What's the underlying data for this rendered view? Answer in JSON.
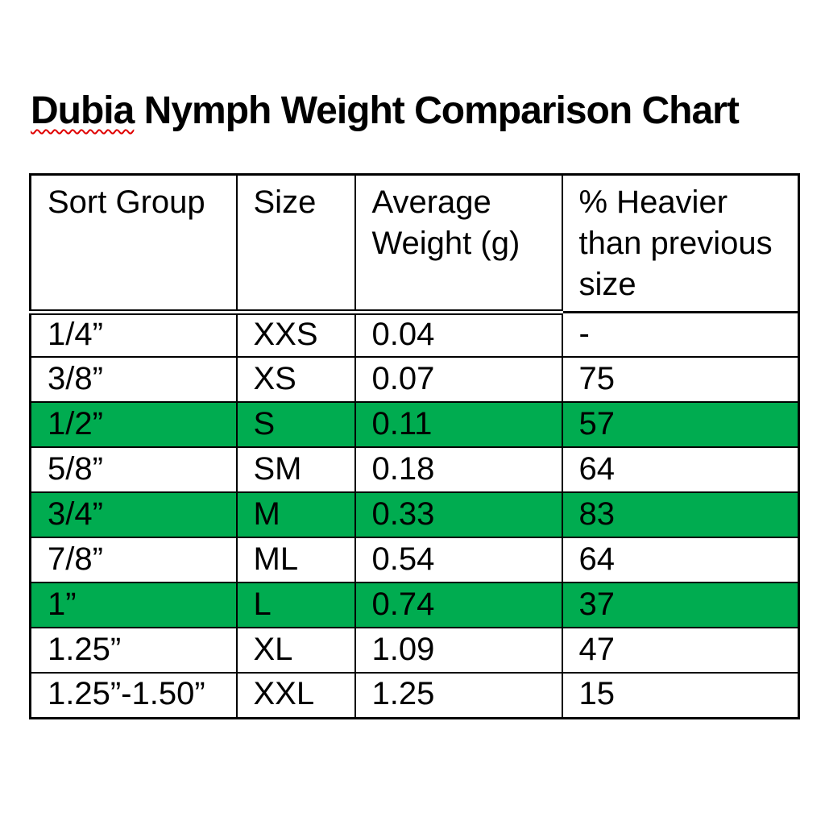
{
  "document": {
    "background": "#ffffff",
    "text_color": "#000000"
  },
  "title": {
    "full_text": "Dubia Nymph Weight Comparison Chart",
    "word_underlined": "Dubia",
    "rest": " Nymph Weight Comparison Chart",
    "spellcheck_squiggle_color": "#e00000"
  },
  "table": {
    "columns": [
      "Sort Group",
      "Size",
      "Average Weight (g)",
      "% Heavier than previous size"
    ],
    "colors": {
      "highlight_green": "#00ac50",
      "border": "#000000",
      "row_default": "#ffffff"
    },
    "rows": [
      {
        "sort_group": "1/4”",
        "size": "XXS",
        "average_weight_g": "0.04",
        "pct_heavier_than_previous": "-",
        "highlighted": false
      },
      {
        "sort_group": "3/8”",
        "size": "XS",
        "average_weight_g": "0.07",
        "pct_heavier_than_previous": "75",
        "highlighted": false
      },
      {
        "sort_group": "1/2”",
        "size": "S",
        "average_weight_g": "0.11",
        "pct_heavier_than_previous": "57",
        "highlighted": true
      },
      {
        "sort_group": "5/8”",
        "size": "SM",
        "average_weight_g": "0.18",
        "pct_heavier_than_previous": "64",
        "highlighted": false
      },
      {
        "sort_group": "3/4”",
        "size": "M",
        "average_weight_g": "0.33",
        "pct_heavier_than_previous": "83",
        "highlighted": true
      },
      {
        "sort_group": "7/8”",
        "size": "ML",
        "average_weight_g": "0.54",
        "pct_heavier_than_previous": "64",
        "highlighted": false
      },
      {
        "sort_group": "1”",
        "size": "L",
        "average_weight_g": "0.74",
        "pct_heavier_than_previous": "37",
        "highlighted": true
      },
      {
        "sort_group": "1.25”",
        "size": "XL",
        "average_weight_g": "1.09",
        "pct_heavier_than_previous": "47",
        "highlighted": false
      },
      {
        "sort_group": "1.25”-1.50”",
        "size": "XXL",
        "average_weight_g": "1.25",
        "pct_heavier_than_previous": "15",
        "highlighted": false
      }
    ]
  },
  "chart_data": {
    "type": "table",
    "title": "Dubia Nymph Weight Comparison Chart",
    "columns": [
      "Sort Group",
      "Size",
      "Average Weight (g)",
      "% Heavier than previous size"
    ],
    "rows": [
      [
        "1/4”",
        "XXS",
        0.04,
        null
      ],
      [
        "3/8”",
        "XS",
        0.07,
        75
      ],
      [
        "1/2”",
        "S",
        0.11,
        57
      ],
      [
        "5/8”",
        "SM",
        0.18,
        64
      ],
      [
        "3/4”",
        "M",
        0.33,
        83
      ],
      [
        "7/8”",
        "ML",
        0.54,
        64
      ],
      [
        "1”",
        "L",
        0.74,
        37
      ],
      [
        "1.25”",
        "XL",
        1.09,
        47
      ],
      [
        "1.25”-1.50”",
        "XXL",
        1.25,
        15
      ]
    ],
    "highlighted_row_indices": [
      2,
      4,
      6
    ],
    "layout": {
      "header_border": "double under first three columns, single under fourth",
      "grid": "all black single borders"
    }
  }
}
